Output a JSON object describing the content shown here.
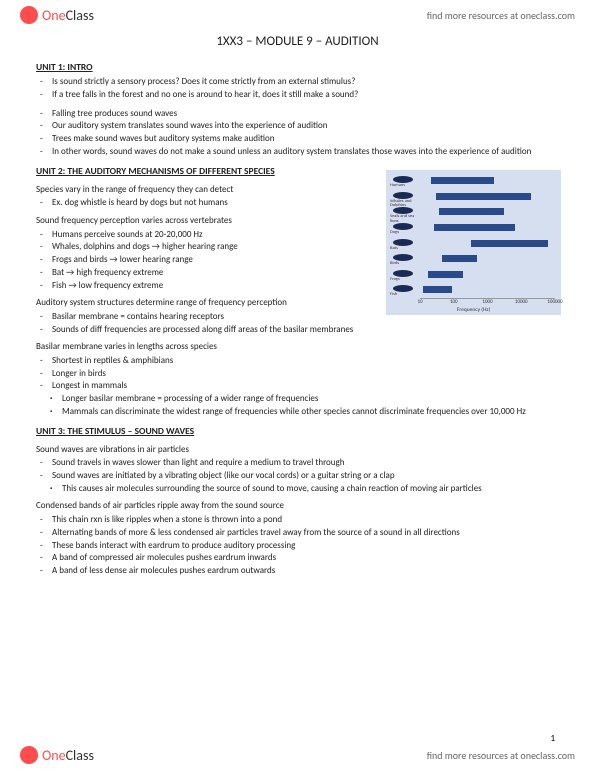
{
  "topbar": {
    "brandPrefix": "One",
    "brandSuffix": "Class",
    "link": "find more resources at oneclass.com"
  },
  "title": "1XX3 – MODULE 9 – AUDITION",
  "unit1": {
    "head": "UNIT 1: INTRO",
    "items": [
      "Is sound strictly a sensory process? Does it come strictly from an external stimulus?",
      "If a tree falls in the forest and no one is around to hear it, does it still make a sound?"
    ],
    "items2": [
      "Falling tree produces sound waves",
      "Our auditory system translates sound waves into the experience of audition",
      "Trees make sound waves but auditory systems make audition",
      "In other words, sound waves do not make a sound unless an auditory system translates those waves into the experience of audition"
    ]
  },
  "unit2": {
    "head": "UNIT 2: THE AUDITORY MECHANISMS OF DIFFERENT SPECIES",
    "p1": "Species vary in the range of frequency they can detect",
    "p1items": [
      "Ex. dog whistle is heard by dogs but not humans"
    ],
    "p2": "Sound frequency perception varies across vertebrates",
    "p2items": [
      "Humans perceive sounds at 20-20,000 Hz",
      "Whales, dolphins and dogs → higher hearing range",
      "Frogs and birds → lower hearing range",
      "Bat → high frequency extreme",
      "Fish → low frequency extreme"
    ],
    "p3": "Auditory system structures determine range of frequency perception",
    "p3items": [
      "Basilar membrane = contains hearing receptors",
      "Sounds of diff frequencies are processed along diff areas of the basilar membranes"
    ],
    "p4": "Basilar membrane varies in lengths across species",
    "p4items": [
      "Shortest in reptiles & amphibians",
      "Longer in birds",
      "Longest in mammals"
    ],
    "p4sub": [
      "Longer basilar membrane = processing of a wider range of frequencies",
      "Mammals can discriminate the widest range of frequencies while other species cannot discriminate frequencies over 10,000 Hz"
    ]
  },
  "unit3": {
    "head": "UNIT 3: THE STIMULUS – SOUND WAVES",
    "p1": "Sound waves are vibrations in air particles",
    "p1items": [
      "Sound travels in waves slower than light and require a medium to travel through",
      "Sound waves are initiated by a vibrating object (like our vocal cords) or a guitar string or a clap"
    ],
    "p1sub": [
      "This causes air molecules surrounding the source of sound to move, causing a chain reaction of moving air particles"
    ],
    "p2": "Condensed bands of air particles ripple away from the sound source",
    "p2items": [
      "This chain rxn is like ripples when a stone is thrown into a pond",
      "Alternating bands of more & less condensed air particles travel away from the source of a sound in all directions",
      "These bands interact with eardrum to produce auditory processing",
      "A band of compressed air molecules pushes eardrum inwards",
      "A band of less dense air molecules pushes eardrum outwards"
    ]
  },
  "chart": {
    "rows": [
      {
        "label": "Humans",
        "start": 8,
        "end": 55
      },
      {
        "label": "Whales and Dolphins",
        "start": 12,
        "end": 82
      },
      {
        "label": "Seals and sea lions",
        "start": 14,
        "end": 62
      },
      {
        "label": "Dogs",
        "start": 10,
        "end": 70
      },
      {
        "label": "Bats",
        "start": 38,
        "end": 95
      },
      {
        "label": "Birds",
        "start": 16,
        "end": 42
      },
      {
        "label": "Frogs",
        "start": 6,
        "end": 32
      },
      {
        "label": "Fish",
        "start": 2,
        "end": 24
      }
    ],
    "xlabel": "Frequency (Hz)",
    "ticks": [
      "10",
      "100",
      "1000",
      "10000",
      "100000"
    ],
    "barColor": "#2b4a8a",
    "bgColor": "#d6dff0"
  },
  "pagenum": "1"
}
